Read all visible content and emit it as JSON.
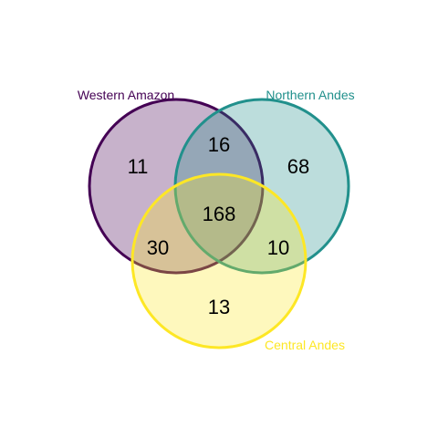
{
  "sets": [
    {
      "key": "wa",
      "label": "Western Amazon",
      "color": "#440154"
    },
    {
      "key": "na",
      "label": "Northern Andes",
      "color": "#21908C"
    },
    {
      "key": "ca",
      "label": "Central Andes",
      "color": "#FDE725"
    }
  ],
  "regions": {
    "wa_only": "11",
    "na_only": "68",
    "ca_only": "13",
    "wa_na": "16",
    "wa_ca": "30",
    "na_ca": "10",
    "all": "168"
  }
}
